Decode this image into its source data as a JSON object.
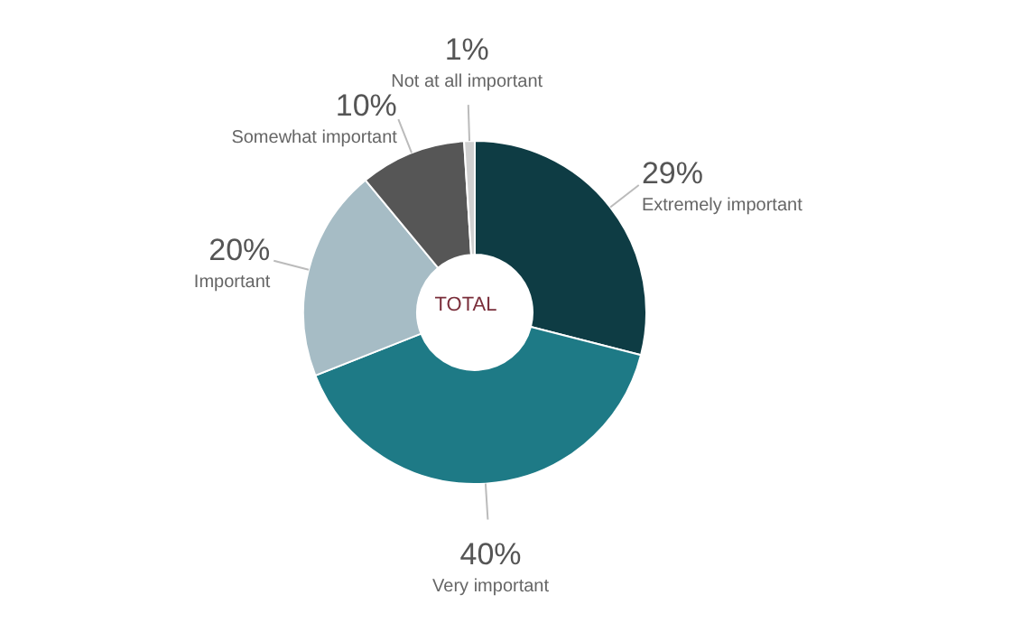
{
  "chart_data": {
    "type": "donut",
    "categories": [
      "Extremely important",
      "Very important",
      "Important",
      "Somewhat important",
      "Not at all important"
    ],
    "values": [
      29,
      40,
      20,
      10,
      1
    ],
    "colors": [
      "#0e3c44",
      "#1e7a86",
      "#a6bcc5",
      "#565656",
      "#d0d0d0"
    ],
    "value_labels": [
      "29%",
      "40%",
      "20%",
      "10%",
      "1%"
    ],
    "annotations": [
      "TOTAL"
    ]
  }
}
